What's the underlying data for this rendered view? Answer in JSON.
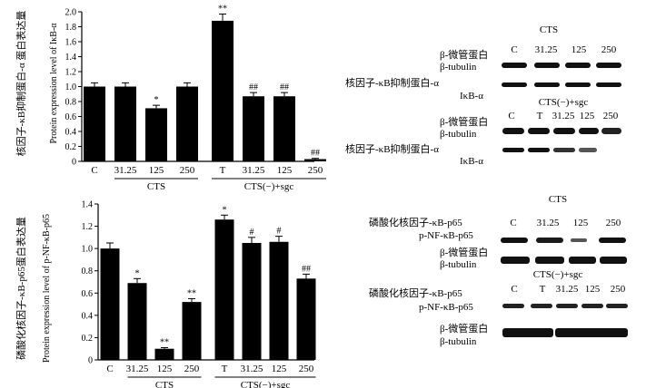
{
  "chart_data": [
    {
      "type": "bar",
      "ylabel_cn": "核因子-κB抑制蛋白-α 蛋白表达量",
      "ylabel_en": "Protein expression level of IκB-α",
      "ylim": [
        0,
        2.0
      ],
      "yticks": [
        "0",
        "0.2",
        "0.4",
        "0.6",
        "0.8",
        "1.0",
        "1.2",
        "1.4",
        "1.6",
        "1.8",
        "2.0"
      ],
      "categories": [
        "C",
        "31.25",
        "125",
        "250",
        "T",
        "31.25",
        "125",
        "250"
      ],
      "values": [
        1.0,
        1.0,
        0.71,
        1.0,
        1.88,
        0.87,
        0.87,
        0.03
      ],
      "errors": [
        0.05,
        0.05,
        0.04,
        0.05,
        0.09,
        0.05,
        0.05,
        0.01
      ],
      "annotations": [
        "",
        "",
        "*",
        "",
        "**",
        "##",
        "##",
        "##"
      ],
      "groups": [
        {
          "label": "CTS",
          "from": 1,
          "to": 3
        },
        {
          "label": "CTS(−)+sgc",
          "from": 4,
          "to": 7
        }
      ]
    },
    {
      "type": "bar",
      "ylabel_cn": "磷酸化核因子-κB-p65蛋白表达量",
      "ylabel_en": "Protein expression level of p-NF-κB-p65",
      "ylim": [
        0,
        1.4
      ],
      "yticks": [
        "0",
        "0.2",
        "0.4",
        "0.6",
        "0.8",
        "1.0",
        "1.2",
        "1.4"
      ],
      "categories": [
        "C",
        "31.25",
        "125",
        "250",
        "T",
        "31.25",
        "125",
        "250"
      ],
      "values": [
        1.0,
        0.69,
        0.1,
        0.52,
        1.26,
        1.05,
        1.06,
        0.73
      ],
      "errors": [
        0.05,
        0.04,
        0.01,
        0.03,
        0.04,
        0.05,
        0.05,
        0.04
      ],
      "annotations": [
        "",
        "*",
        "**",
        "**",
        "*",
        "#",
        "#",
        "##"
      ],
      "groups": [
        {
          "label": "CTS",
          "from": 1,
          "to": 3
        },
        {
          "label": "CTS(−)+sgc",
          "from": 4,
          "to": 7
        }
      ]
    }
  ],
  "blots": {
    "top": {
      "title": "CTS",
      "lanes_a": [
        "C",
        "31.25",
        "125",
        "250"
      ],
      "label_a1_cn": "β-微管蛋白",
      "label_a1_en": "β-tubulin",
      "label_a2_cn": "核因子-κB抑制蛋白-α",
      "label_a2_en": "IκB-α",
      "title_b": "CTS(−)+sgc",
      "lanes_b": [
        "C",
        "T",
        "31.25",
        "125",
        "250"
      ],
      "label_b1_cn": "β-微管蛋白",
      "label_b1_en": "β-tubulin",
      "label_b2_cn": "核因子-κB抑制蛋白-α",
      "label_b2_en": "IκB-α"
    },
    "bottom": {
      "title": "CTS",
      "lanes_a": [
        "C",
        "31.25",
        "125",
        "250"
      ],
      "label_a1_cn": "磷酸化核因子-κB-p65",
      "label_a1_en": "p-NF-κB-p65",
      "label_a2_cn": "β-微管蛋白",
      "label_a2_en": "β-tubulin",
      "title_b": "CTS(−)+sgc",
      "lanes_b": [
        "C",
        "T",
        "31.25",
        "125",
        "250"
      ],
      "label_b1_cn": "磷酸化核因子-κB-p65",
      "label_b1_en": "p-NF-κB-p65",
      "label_b2_cn": "β-微管蛋白",
      "label_b2_en": "β-tubulin"
    }
  }
}
